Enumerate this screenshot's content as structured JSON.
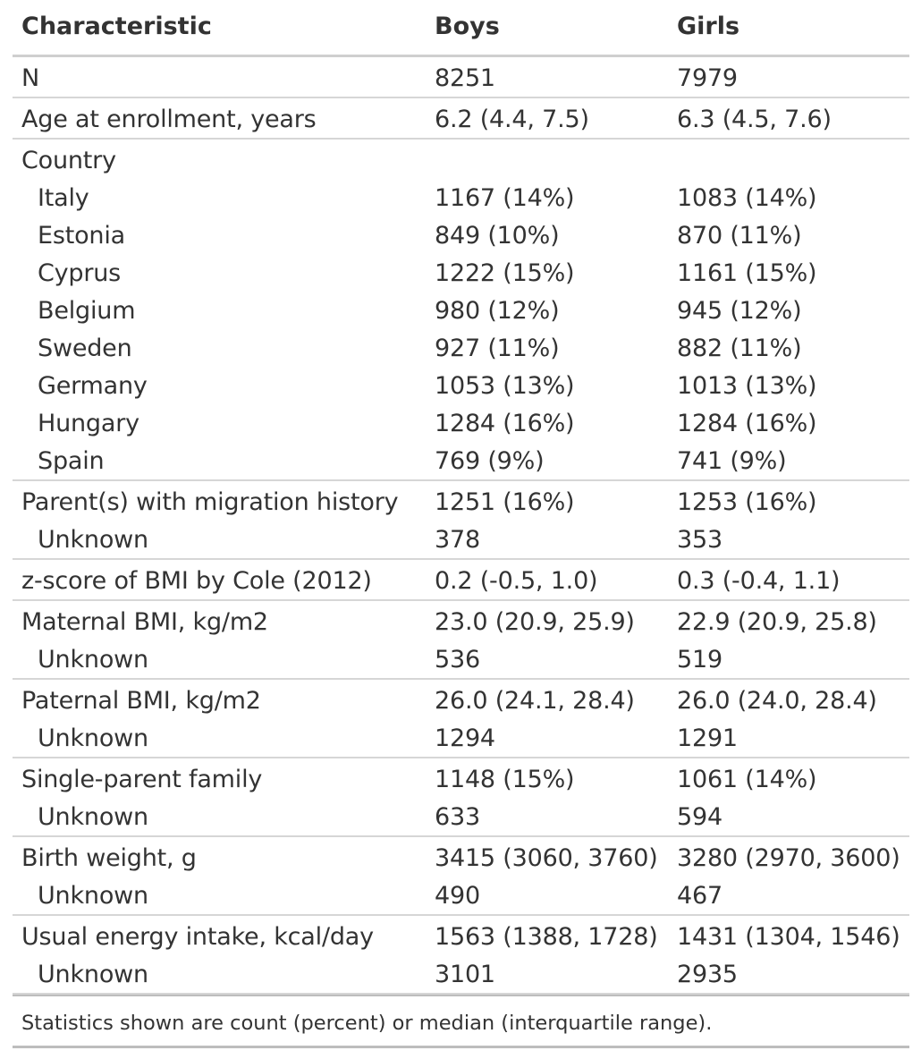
{
  "table": {
    "headers": [
      "Characteristic",
      "Boys",
      "Girls"
    ],
    "groups": [
      [
        [
          "N",
          "8251",
          "7979",
          false
        ]
      ],
      [
        [
          "Age at enrollment, years",
          "6.2 (4.4, 7.5)",
          "6.3 (4.5, 7.6)",
          false
        ]
      ],
      [
        [
          "Country",
          "",
          "",
          false
        ],
        [
          "Italy",
          "1167 (14%)",
          "1083 (14%)",
          true
        ],
        [
          "Estonia",
          "849 (10%)",
          "870 (11%)",
          true
        ],
        [
          "Cyprus",
          "1222 (15%)",
          "1161 (15%)",
          true
        ],
        [
          "Belgium",
          "980 (12%)",
          "945 (12%)",
          true
        ],
        [
          "Sweden",
          "927 (11%)",
          "882 (11%)",
          true
        ],
        [
          "Germany",
          "1053 (13%)",
          "1013 (13%)",
          true
        ],
        [
          "Hungary",
          "1284 (16%)",
          "1284 (16%)",
          true
        ],
        [
          "Spain",
          "769 (9%)",
          "741 (9%)",
          true
        ]
      ],
      [
        [
          "Parent(s) with migration history",
          "1251 (16%)",
          "1253 (16%)",
          false
        ],
        [
          "Unknown",
          "378",
          "353",
          true
        ]
      ],
      [
        [
          "z-score of BMI by Cole (2012)",
          "0.2 (-0.5, 1.0)",
          "0.3 (-0.4, 1.1)",
          false
        ]
      ],
      [
        [
          "Maternal BMI, kg/m2",
          "23.0 (20.9, 25.9)",
          "22.9 (20.9, 25.8)",
          false
        ],
        [
          "Unknown",
          "536",
          "519",
          true
        ]
      ],
      [
        [
          "Paternal BMI, kg/m2",
          "26.0 (24.1, 28.4)",
          "26.0 (24.0, 28.4)",
          false
        ],
        [
          "Unknown",
          "1294",
          "1291",
          true
        ]
      ],
      [
        [
          "Single-parent family",
          "1148 (15%)",
          "1061 (14%)",
          false
        ],
        [
          "Unknown",
          "633",
          "594",
          true
        ]
      ],
      [
        [
          "Birth weight, g",
          "3415 (3060, 3760)",
          "3280 (2970, 3600)",
          false
        ],
        [
          "Unknown",
          "490",
          "467",
          true
        ]
      ],
      [
        [
          "Usual energy intake, kcal/day",
          "1563 (1388, 1728)",
          "1431 (1304, 1546)",
          false
        ],
        [
          "Unknown",
          "3101",
          "2935",
          true
        ]
      ]
    ],
    "footnote": "Statistics shown are count (percent) or median (interquartile range)."
  }
}
